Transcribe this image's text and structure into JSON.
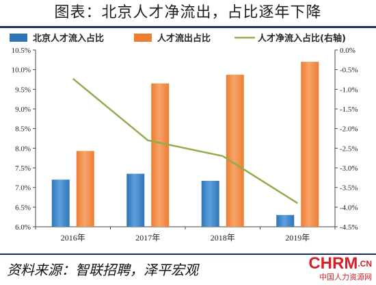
{
  "header": {
    "title": "图表：北京人才净流出，占比逐年下降"
  },
  "chart_data": {
    "type": "bar+line",
    "categories": [
      "2016年",
      "2017年",
      "2018年",
      "2019年"
    ],
    "series": [
      {
        "name": "北京人才流入占比",
        "kind": "bar",
        "axis": "left",
        "color": "#2e75b6",
        "values": [
          7.2,
          7.35,
          7.17,
          6.3
        ]
      },
      {
        "name": "人才流出占比",
        "kind": "bar",
        "axis": "left",
        "color": "#ed7d31",
        "values": [
          7.93,
          9.65,
          9.87,
          10.2
        ]
      },
      {
        "name": "人才净流入占比(右轴)",
        "kind": "line",
        "axis": "right",
        "color": "#8fad4e",
        "values": [
          -0.73,
          -2.3,
          -2.7,
          -3.9
        ]
      }
    ],
    "y_left": {
      "min": 6.0,
      "max": 10.5,
      "step": 0.5,
      "ticks": [
        "6.0%",
        "6.5%",
        "7.0%",
        "7.5%",
        "8.0%",
        "8.5%",
        "9.0%",
        "9.5%",
        "10.0%",
        "10.5%"
      ]
    },
    "y_right": {
      "min": -4.5,
      "max": 0.0,
      "step": 0.5,
      "ticks": [
        "-4.5%",
        "-4.0%",
        "-3.5%",
        "-3.0%",
        "-2.5%",
        "-2.0%",
        "-1.5%",
        "-1.0%",
        "-0.5%",
        "0.0%"
      ]
    },
    "legend": "top",
    "grid": false
  },
  "footer": {
    "source": "资料来源：智联招聘，泽平宏观"
  },
  "watermark": {
    "logo": "CHRM",
    "suffix": ".CN",
    "subtitle": "中国人力资源网"
  }
}
